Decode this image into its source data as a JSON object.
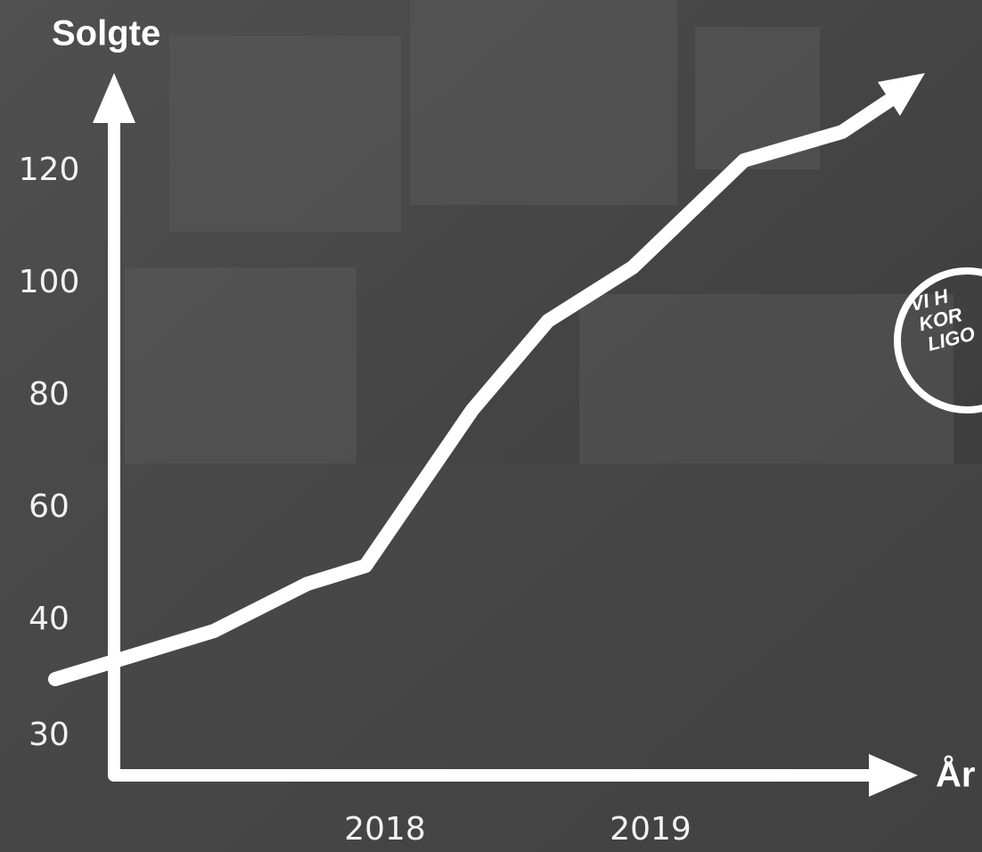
{
  "y_axis": {
    "title": "Solgte",
    "labels": [
      "120",
      "100",
      "80",
      "60",
      "40",
      "30"
    ]
  },
  "x_axis": {
    "title": "År",
    "labels": [
      "2018",
      "2019"
    ]
  },
  "badge": {
    "lines": [
      "VI H",
      "KOR",
      "LIGO"
    ]
  }
}
